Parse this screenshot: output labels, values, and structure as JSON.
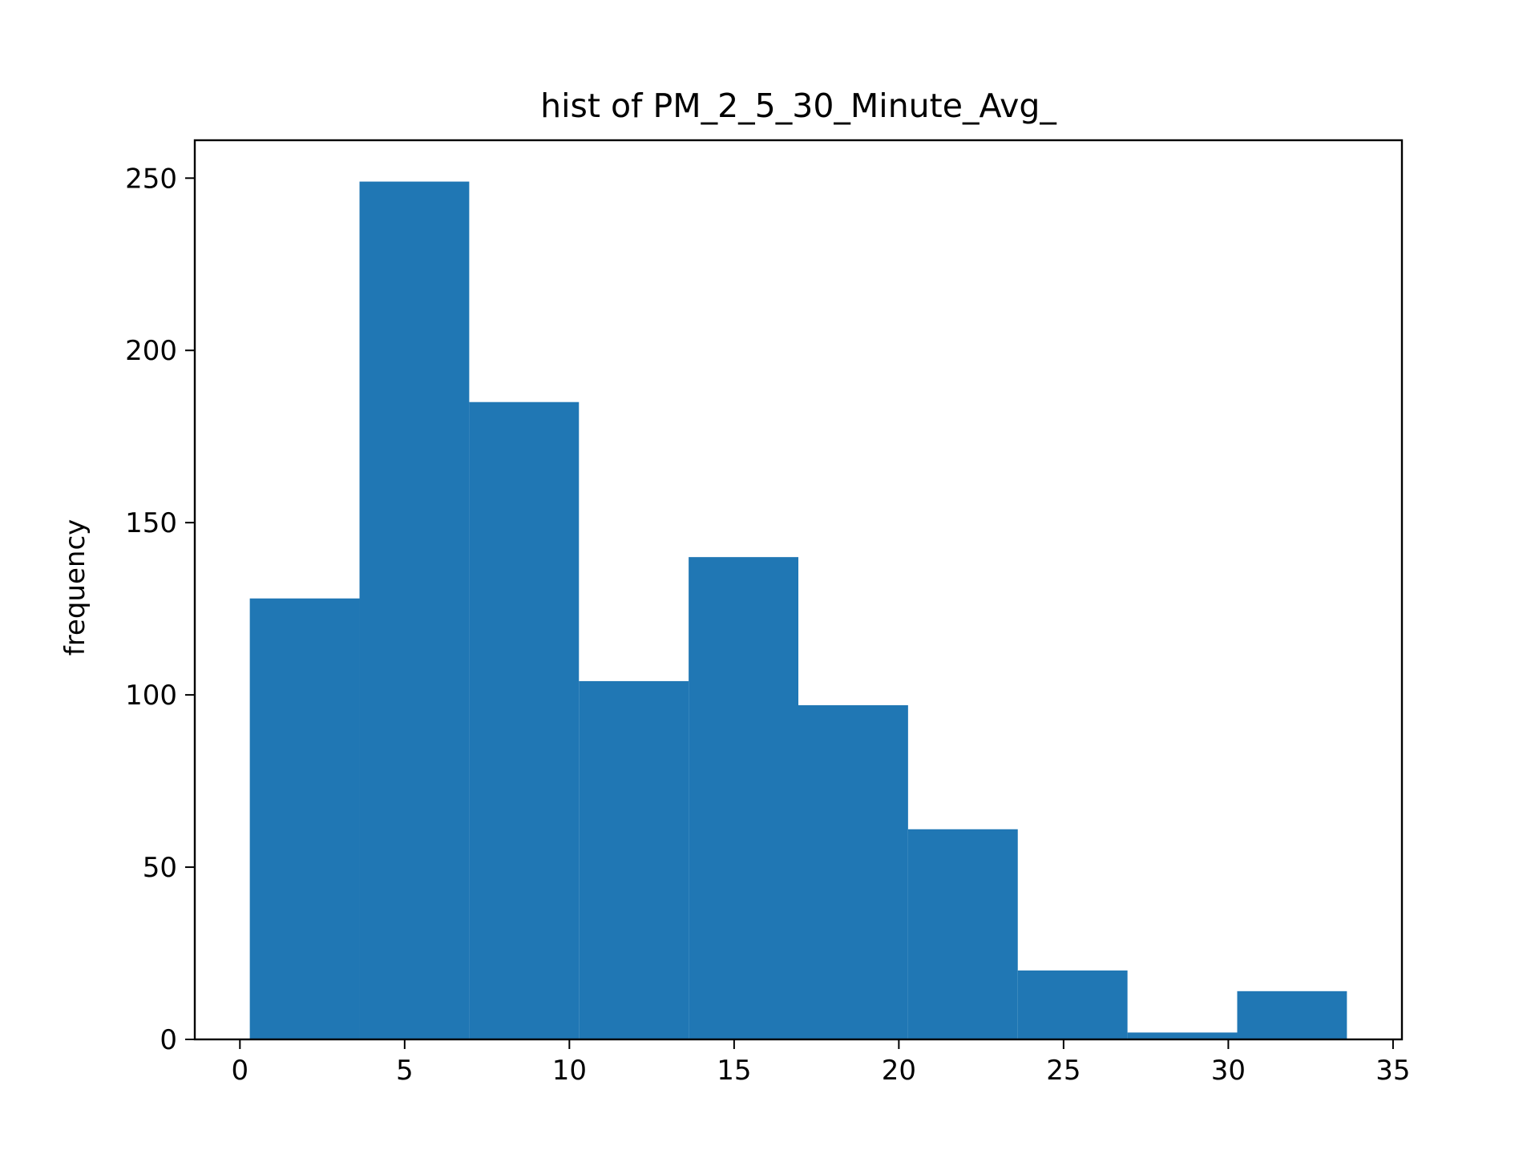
{
  "chart_data": {
    "type": "bar",
    "title": "hist of PM_2_5_30_Minute_Avg_",
    "xlabel": "",
    "ylabel": "frequency",
    "bins": [
      {
        "x0": 0.3,
        "x1": 3.63,
        "value": 128
      },
      {
        "x0": 3.63,
        "x1": 6.96,
        "value": 249
      },
      {
        "x0": 6.96,
        "x1": 10.29,
        "value": 185
      },
      {
        "x0": 10.29,
        "x1": 13.62,
        "value": 104
      },
      {
        "x0": 13.62,
        "x1": 16.95,
        "value": 140
      },
      {
        "x0": 16.95,
        "x1": 20.28,
        "value": 97
      },
      {
        "x0": 20.28,
        "x1": 23.61,
        "value": 61
      },
      {
        "x0": 23.61,
        "x1": 26.94,
        "value": 20
      },
      {
        "x0": 26.94,
        "x1": 30.27,
        "value": 2
      },
      {
        "x0": 30.27,
        "x1": 33.6,
        "value": 14
      }
    ],
    "xlim": [
      -1.37,
      35.27
    ],
    "ylim": [
      0,
      261
    ],
    "xticks": [
      0,
      5,
      10,
      15,
      20,
      25,
      30,
      35
    ],
    "yticks": [
      0,
      50,
      100,
      150,
      200,
      250
    ],
    "grid": false,
    "bar_color": "#2077b4"
  }
}
